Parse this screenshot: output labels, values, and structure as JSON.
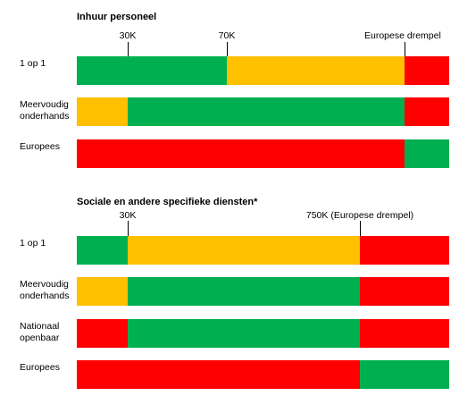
{
  "colors": {
    "green": "#00b050",
    "yellow": "#ffc000",
    "red": "#ff0000"
  },
  "sections": [
    {
      "title": "Inhuur personeel",
      "markers": [
        "30K",
        "70K",
        "Europese drempel"
      ],
      "rows": [
        {
          "label": "1 op 1",
          "segments": [
            "green",
            "yellow",
            "red"
          ]
        },
        {
          "label": "Meervoudig onderhands",
          "segments": [
            "yellow",
            "green",
            "red"
          ]
        },
        {
          "label": "Europees",
          "segments": [
            "red",
            "green"
          ]
        }
      ]
    },
    {
      "title": "Sociale en andere specifieke diensten*",
      "markers": [
        "30K",
        "750K (Europese drempel)"
      ],
      "rows": [
        {
          "label": "1 op 1",
          "segments": [
            "green",
            "yellow",
            "red"
          ]
        },
        {
          "label": "Meervoudig onderhands",
          "segments": [
            "yellow",
            "green",
            "red"
          ]
        },
        {
          "label": "Nationaal openbaar",
          "segments": [
            "red",
            "green",
            "red"
          ]
        },
        {
          "label": "Europees",
          "segments": [
            "red",
            "green"
          ]
        }
      ]
    }
  ]
}
